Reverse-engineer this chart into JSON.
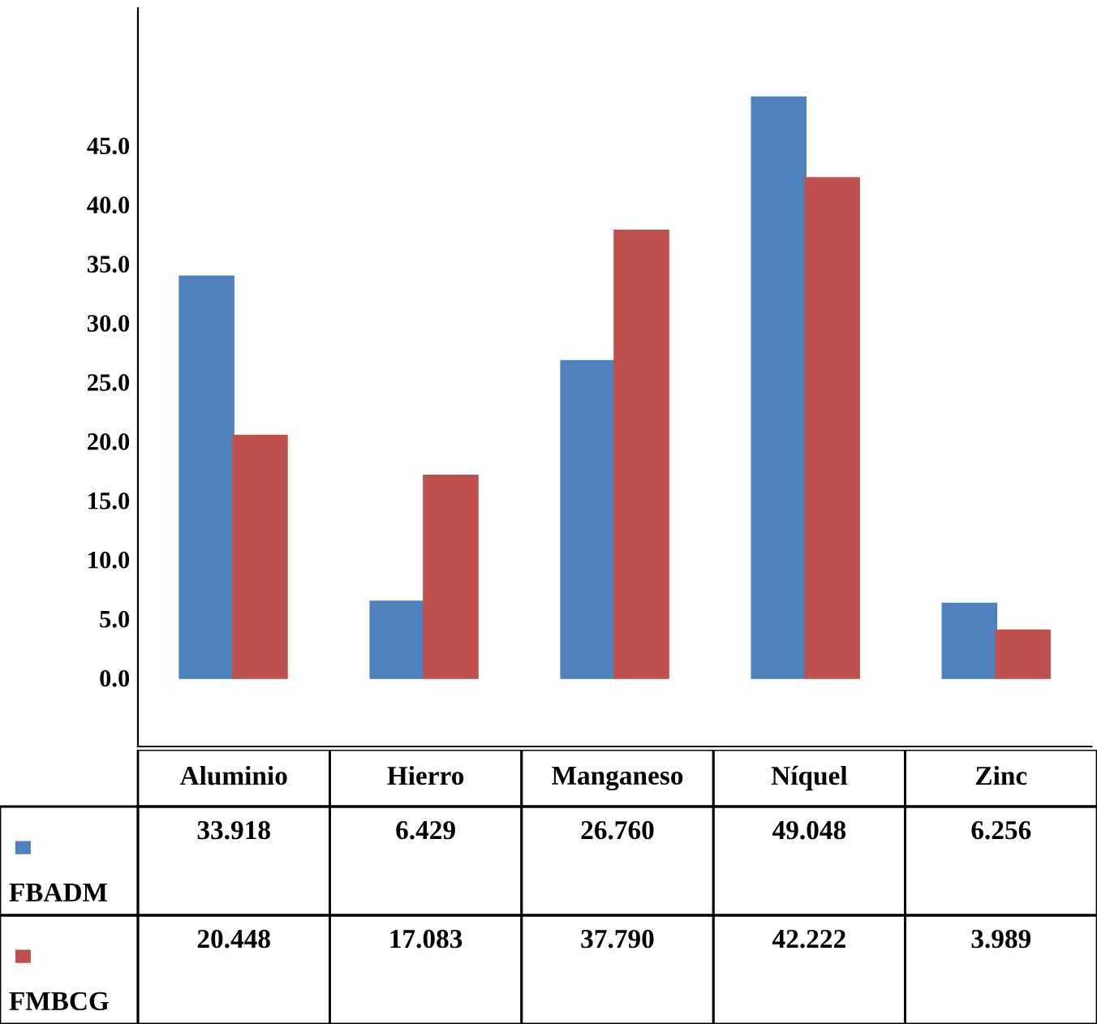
{
  "chart_data": {
    "type": "bar",
    "categories": [
      "Aluminio",
      "Hierro",
      "Manganeso",
      "Níquel",
      "Zinc"
    ],
    "series": [
      {
        "name": "FBADM",
        "color": "#4f81bd",
        "values": [
          33.918,
          6.429,
          26.76,
          49.048,
          6.256
        ],
        "value_labels": [
          "33.918",
          "6.429",
          "26.760",
          "49.048",
          "6.256"
        ]
      },
      {
        "name": "FMBCG",
        "color": "#c0504d",
        "values": [
          20.448,
          17.083,
          37.79,
          42.222,
          3.989
        ],
        "value_labels": [
          "20.448",
          "17.083",
          "37.790",
          "42.222",
          "3.989"
        ]
      }
    ],
    "ylim": [
      -5.8,
      56.6
    ],
    "yticks": [
      {
        "value": 0,
        "label": "0.0"
      },
      {
        "value": 5,
        "label": "5.0"
      },
      {
        "value": 10,
        "label": "10.0"
      },
      {
        "value": 15,
        "label": "15.0"
      },
      {
        "value": 20,
        "label": "20.0"
      },
      {
        "value": 25,
        "label": "25.0"
      },
      {
        "value": 30,
        "label": "30.0"
      },
      {
        "value": 35,
        "label": "35.0"
      },
      {
        "value": 40,
        "label": "40.0"
      },
      {
        "value": 45,
        "label": "45.0"
      }
    ],
    "grid": false,
    "legend": "bottom left"
  }
}
